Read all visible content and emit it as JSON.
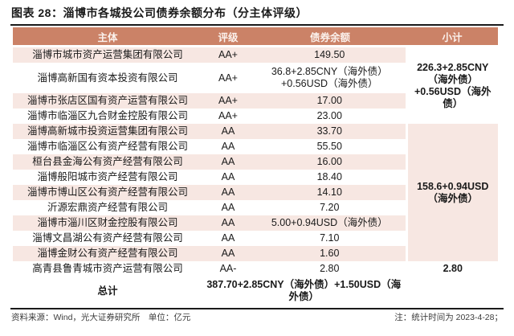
{
  "title": "图表 28：淄博市各城投公司债券余额分布（分主体评级）",
  "table": {
    "headers": {
      "entity": "主体",
      "rating": "评级",
      "balance": "债券余额",
      "subtotal": "小计"
    },
    "rows": [
      {
        "entity": "淄博市城市资产运营集团有限公司",
        "rating": "AA+",
        "balance": "149.50"
      },
      {
        "entity": "淄博高新国有资本投资有限公司",
        "rating": "AA+",
        "balance": "36.8+2.85CNY（海外债）+0.56USD（海外债）"
      },
      {
        "entity": "淄博市张店区国有资产运营有限公司",
        "rating": "AA+",
        "balance": "17.00"
      },
      {
        "entity": "淄博市临淄区九合财金控股有限公司",
        "rating": "AA+",
        "balance": "23.00"
      },
      {
        "entity": "淄博高新城市投资运营集团有限公司",
        "rating": "AA",
        "balance": "33.70"
      },
      {
        "entity": "淄博市临淄区公有资产经营有限公司",
        "rating": "AA",
        "balance": "55.50"
      },
      {
        "entity": "桓台县金海公有资产经营有限公司",
        "rating": "AA",
        "balance": "16.00"
      },
      {
        "entity": "淄博般阳城市资产经营有限公司",
        "rating": "AA",
        "balance": "18.40"
      },
      {
        "entity": "淄博市博山区公有资产经营有限公司",
        "rating": "AA",
        "balance": "14.10"
      },
      {
        "entity": "沂源宏鼎资产经营有限公司",
        "rating": "AA",
        "balance": "7.20"
      },
      {
        "entity": "淄博市淄川区财金控股有限公司",
        "rating": "AA",
        "balance": "5.00+0.94USD（海外债）"
      },
      {
        "entity": "淄博文昌湖公有资产经营有限公司",
        "rating": "AA",
        "balance": "7.10"
      },
      {
        "entity": "淄博金财公有资产经营有限公司",
        "rating": "AA",
        "balance": "1.60"
      },
      {
        "entity": "高青县鲁青城市资产运营有限公司",
        "rating": "AA-",
        "balance": "2.80"
      }
    ],
    "subtotals": {
      "aa_plus": "226.3+2.85CNY（海外债）+0.56USD（海外债）",
      "aa": "158.6+0.94USD（海外债）",
      "aa_minus": "2.80"
    },
    "total": {
      "label": "总计",
      "balance": "387.70+2.85CNY（海外债）+1.50USD（海外债）"
    }
  },
  "footer": {
    "source": "资料来源：Wind，光大证券研究所　单位：亿元",
    "note": "注：统计时间为 2023-4-28；"
  },
  "colors": {
    "header_bg": "#CB8267",
    "row_alt_bg": "#F7E7E2",
    "header_text": "#FBF1EC",
    "rule": "#1A1A1A"
  }
}
